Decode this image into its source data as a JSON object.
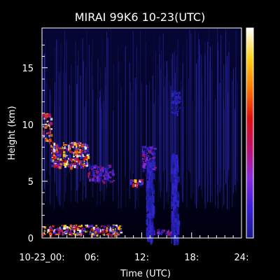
{
  "chart_data": {
    "type": "heatmap",
    "title": "MIRAI 99K6 10-23(UTC)",
    "xlabel": "Time (UTC)",
    "ylabel": "Height (km)",
    "xlim": [
      0,
      24
    ],
    "ylim": [
      0,
      18.5
    ],
    "x_ticks": [
      {
        "value": 0,
        "label": "10-23_00:"
      },
      {
        "value": 6,
        "label": "06:"
      },
      {
        "value": 12,
        "label": "12:"
      },
      {
        "value": 18,
        "label": "18:"
      },
      {
        "value": 24,
        "label": "24:"
      }
    ],
    "y_ticks": [
      {
        "value": 0,
        "label": "0"
      },
      {
        "value": 5,
        "label": "5"
      },
      {
        "value": 10,
        "label": "10"
      },
      {
        "value": 15,
        "label": "15"
      }
    ],
    "colorbar": {
      "colors": [
        "#1a1a8c",
        "#3b1fd6",
        "#8a2be2",
        "#c0106a",
        "#e01010",
        "#ff7a00",
        "#ffd21a",
        "#ffffff"
      ]
    },
    "features": [
      {
        "kind": "cloud_layer",
        "x_start": 0.0,
        "x_end": 1.0,
        "y_start": 8.5,
        "y_end": 11.0,
        "level": "high"
      },
      {
        "kind": "cloud_layer",
        "x_start": 1.0,
        "x_end": 5.5,
        "y_start": 6.3,
        "y_end": 8.5,
        "level": "high"
      },
      {
        "kind": "cloud_layer",
        "x_start": 5.5,
        "x_end": 8.5,
        "y_start": 5.0,
        "y_end": 6.5,
        "level": "mid"
      },
      {
        "kind": "cloud_layer",
        "x_start": 10.5,
        "x_end": 12.0,
        "y_start": 4.6,
        "y_end": 5.2,
        "level": "high"
      },
      {
        "kind": "cloud_layer",
        "x_start": 12.0,
        "x_end": 13.5,
        "y_start": 6.0,
        "y_end": 8.2,
        "level": "mid"
      },
      {
        "kind": "cloud_layer",
        "x_start": 15.5,
        "x_end": 16.5,
        "y_start": 11.0,
        "y_end": 13.0,
        "level": "low"
      },
      {
        "kind": "boundary_layer",
        "x_start": 0.0,
        "x_end": 9.5,
        "y_start": 0.3,
        "y_end": 1.2,
        "level": "high"
      },
      {
        "kind": "boundary_layer",
        "x_start": 12.5,
        "x_end": 16.0,
        "y_start": 0.4,
        "y_end": 0.8,
        "level": "mid"
      },
      {
        "kind": "column",
        "x_start": 15.5,
        "x_end": 16.3,
        "y_start": 0.0,
        "y_end": 7.5,
        "level": "low"
      },
      {
        "kind": "column",
        "x_start": 12.5,
        "x_end": 13.3,
        "y_start": 0.0,
        "y_end": 7.0,
        "level": "low"
      }
    ]
  }
}
